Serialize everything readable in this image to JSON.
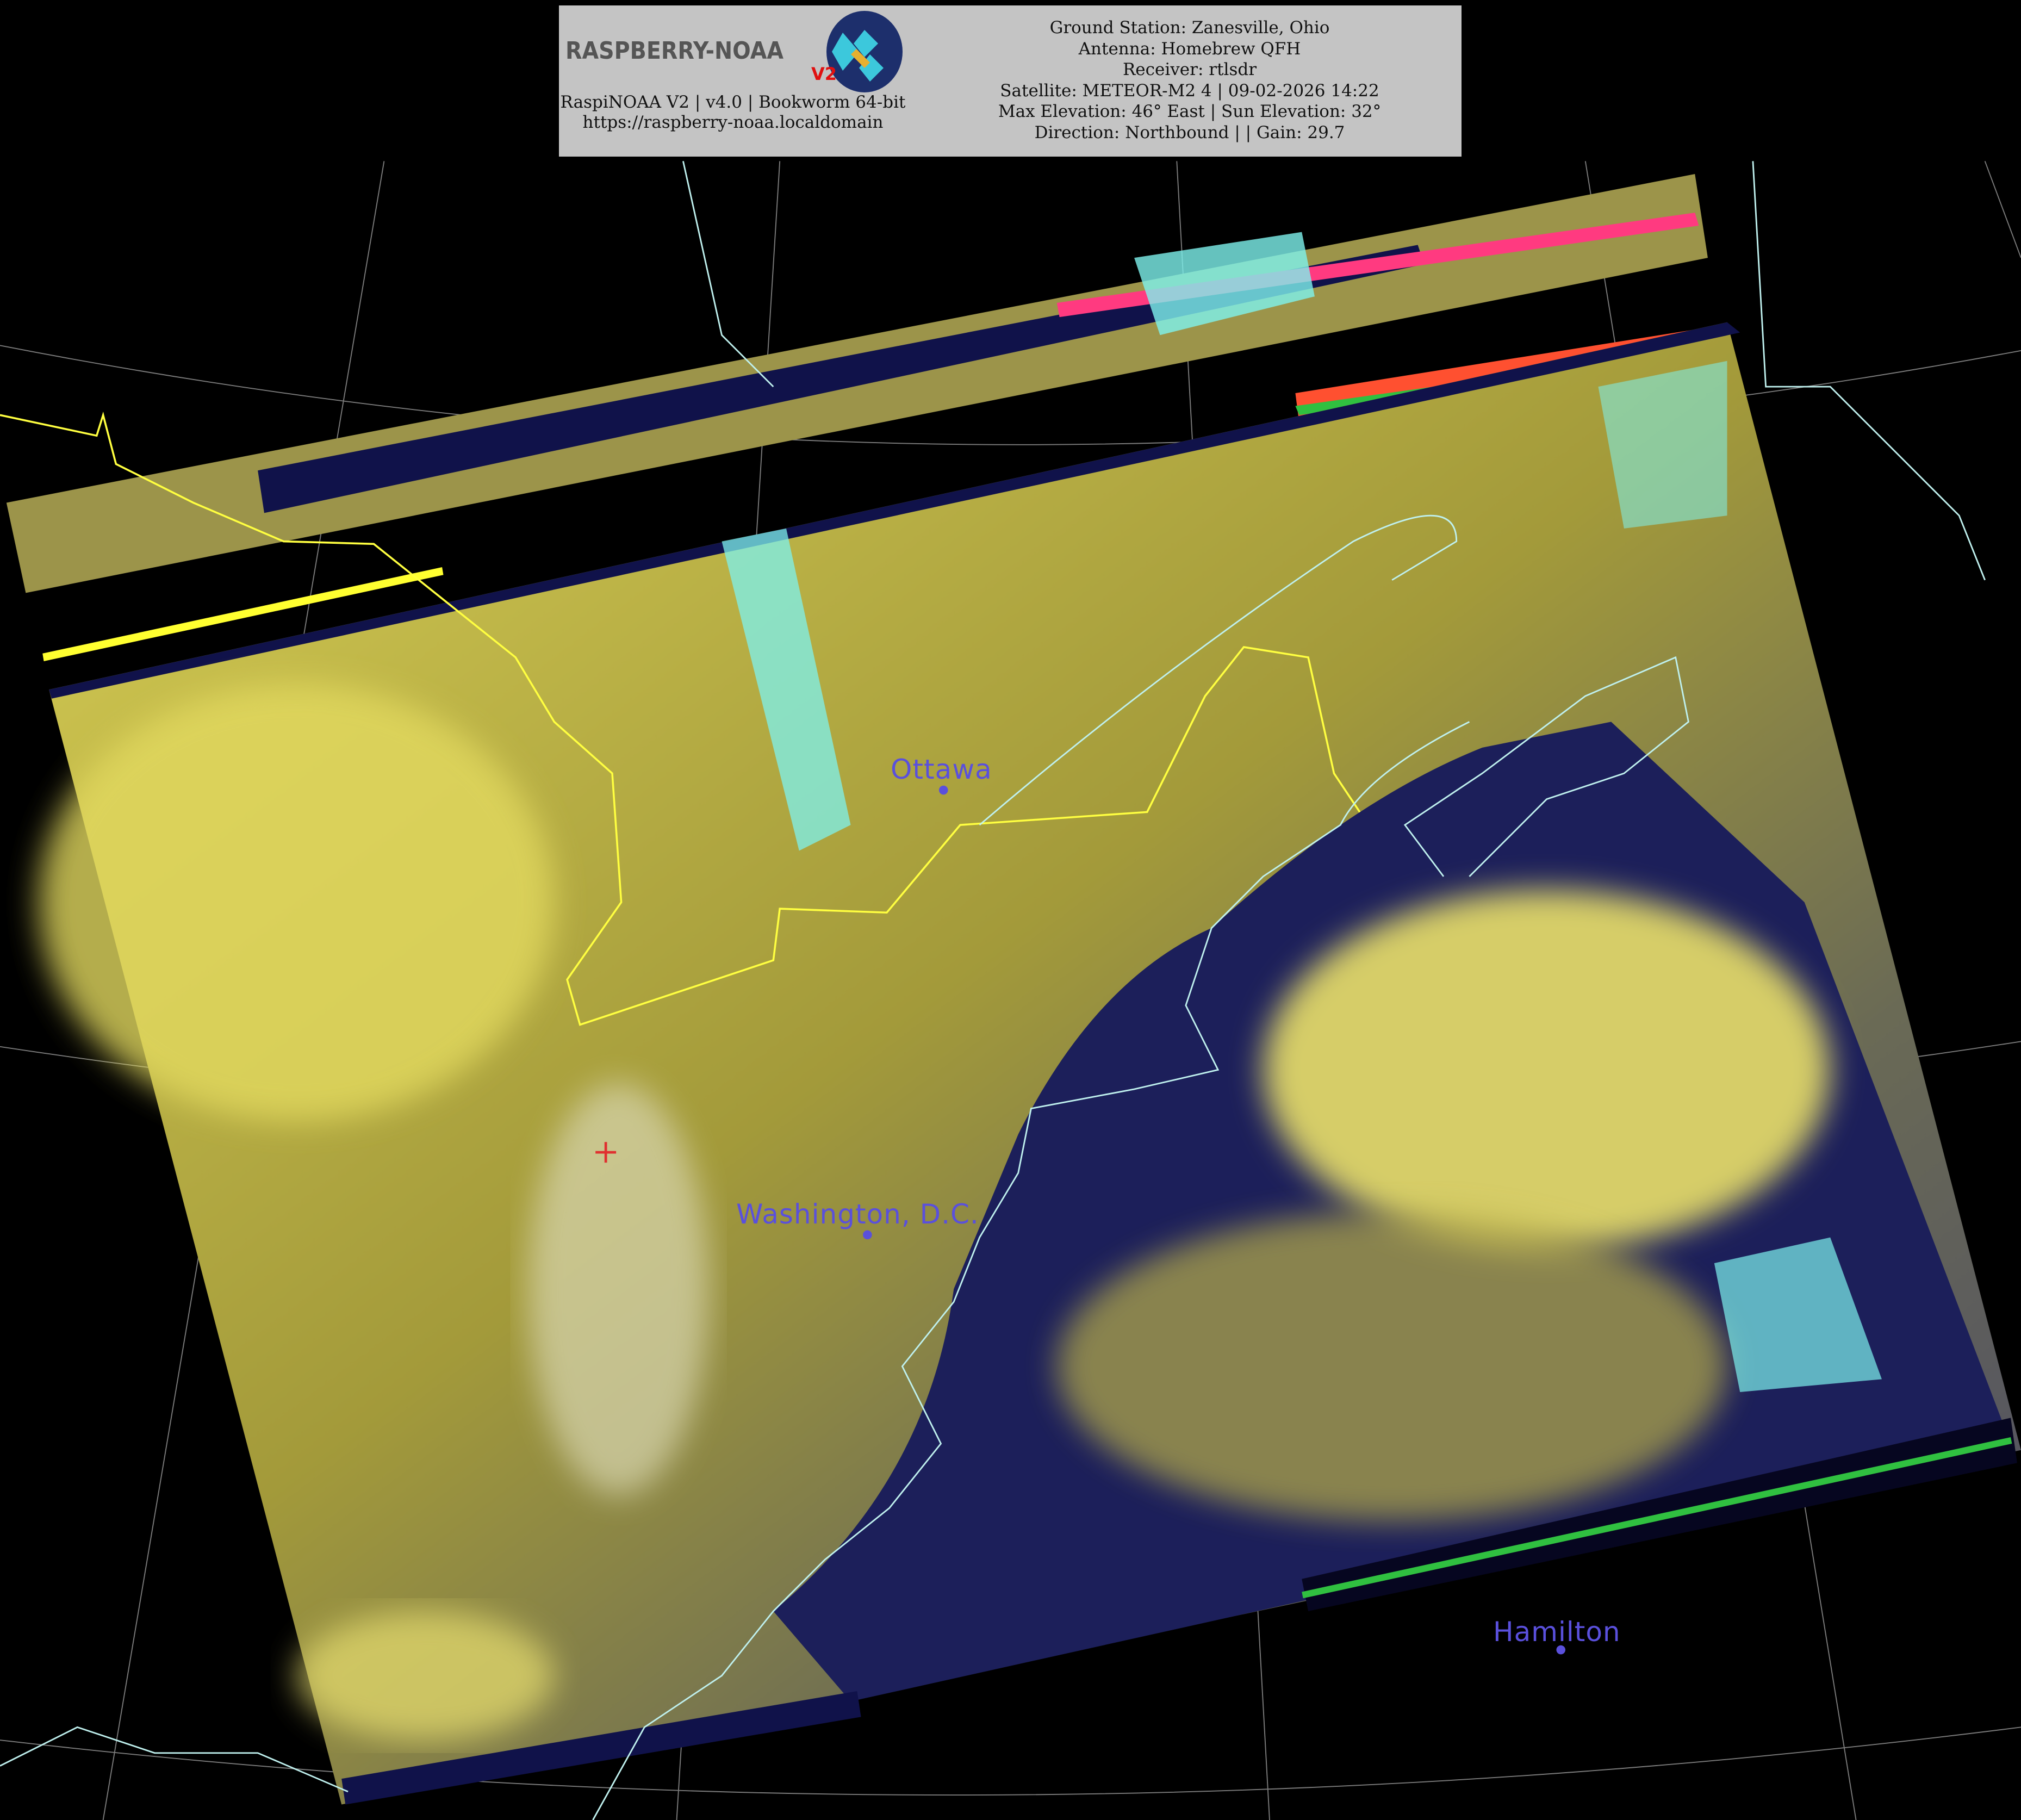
{
  "header": {
    "logo_text": "RASPBERRY-NOAA",
    "logo_badge": "V2",
    "left_lines": [
      "RaspiNOAA V2 | v4.0 | Bookworm 64-bit",
      "https://raspberry-noaa.localdomain"
    ],
    "right_lines": [
      "Ground Station: Zanesville, Ohio",
      "Antenna: Homebrew QFH",
      "Receiver: rtlsdr",
      "Satellite: METEOR-M2 4 | 09-02-2026 14:22",
      "Max Elevation: 46° East | Sun Elevation: 32°",
      "Direction: Northbound | | Gain: 29.7"
    ]
  },
  "map": {
    "cities": [
      {
        "name": "Ottawa"
      },
      {
        "name": "Washington, D.C."
      },
      {
        "name": "Hamilton"
      }
    ],
    "ground_station_marker": "red-cross",
    "colors": {
      "background": "#000000",
      "land_clouds": "#c9c04a",
      "ocean": "#1c1f5a",
      "coastline": "#bff0ee",
      "border": "#ffff40",
      "graticule": "#9a9a9a",
      "city_label": "#5a50dc",
      "marker": "#e03030"
    }
  }
}
